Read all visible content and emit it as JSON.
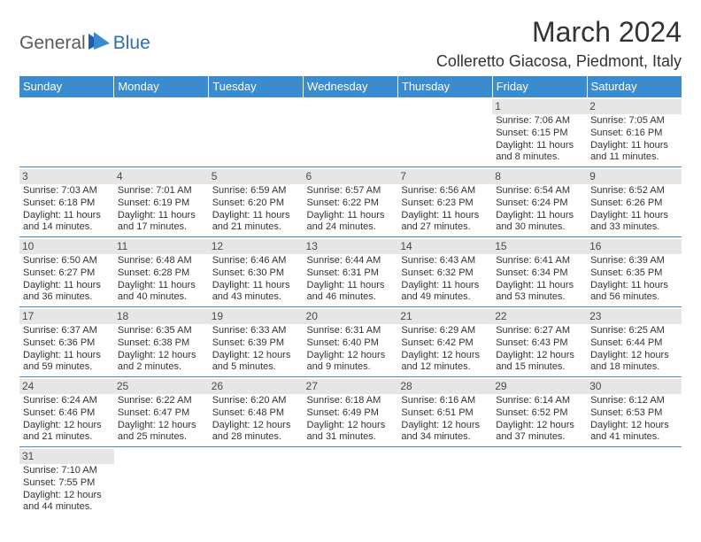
{
  "logo": {
    "text1": "General",
    "text2": "Blue"
  },
  "title": "March 2024",
  "location": "Colleretto Giacosa, Piedmont, Italy",
  "dayHeaders": [
    "Sunday",
    "Monday",
    "Tuesday",
    "Wednesday",
    "Thursday",
    "Friday",
    "Saturday"
  ],
  "colors": {
    "headerBg": "#3b8cce",
    "headerText": "#ffffff",
    "dayNumBg": "#e6e6e6",
    "dayNumText": "#4a4a4a",
    "bodyText": "#333333",
    "cellBorder": "#3b8cce",
    "logoGray": "#5a5a5a",
    "logoBlue": "#2a6ebd"
  },
  "weeks": [
    [
      null,
      null,
      null,
      null,
      null,
      {
        "n": "1",
        "sr": "Sunrise: 7:06 AM",
        "ss": "Sunset: 6:15 PM",
        "d1": "Daylight: 11 hours",
        "d2": "and 8 minutes."
      },
      {
        "n": "2",
        "sr": "Sunrise: 7:05 AM",
        "ss": "Sunset: 6:16 PM",
        "d1": "Daylight: 11 hours",
        "d2": "and 11 minutes."
      }
    ],
    [
      {
        "n": "3",
        "sr": "Sunrise: 7:03 AM",
        "ss": "Sunset: 6:18 PM",
        "d1": "Daylight: 11 hours",
        "d2": "and 14 minutes."
      },
      {
        "n": "4",
        "sr": "Sunrise: 7:01 AM",
        "ss": "Sunset: 6:19 PM",
        "d1": "Daylight: 11 hours",
        "d2": "and 17 minutes."
      },
      {
        "n": "5",
        "sr": "Sunrise: 6:59 AM",
        "ss": "Sunset: 6:20 PM",
        "d1": "Daylight: 11 hours",
        "d2": "and 21 minutes."
      },
      {
        "n": "6",
        "sr": "Sunrise: 6:57 AM",
        "ss": "Sunset: 6:22 PM",
        "d1": "Daylight: 11 hours",
        "d2": "and 24 minutes."
      },
      {
        "n": "7",
        "sr": "Sunrise: 6:56 AM",
        "ss": "Sunset: 6:23 PM",
        "d1": "Daylight: 11 hours",
        "d2": "and 27 minutes."
      },
      {
        "n": "8",
        "sr": "Sunrise: 6:54 AM",
        "ss": "Sunset: 6:24 PM",
        "d1": "Daylight: 11 hours",
        "d2": "and 30 minutes."
      },
      {
        "n": "9",
        "sr": "Sunrise: 6:52 AM",
        "ss": "Sunset: 6:26 PM",
        "d1": "Daylight: 11 hours",
        "d2": "and 33 minutes."
      }
    ],
    [
      {
        "n": "10",
        "sr": "Sunrise: 6:50 AM",
        "ss": "Sunset: 6:27 PM",
        "d1": "Daylight: 11 hours",
        "d2": "and 36 minutes."
      },
      {
        "n": "11",
        "sr": "Sunrise: 6:48 AM",
        "ss": "Sunset: 6:28 PM",
        "d1": "Daylight: 11 hours",
        "d2": "and 40 minutes."
      },
      {
        "n": "12",
        "sr": "Sunrise: 6:46 AM",
        "ss": "Sunset: 6:30 PM",
        "d1": "Daylight: 11 hours",
        "d2": "and 43 minutes."
      },
      {
        "n": "13",
        "sr": "Sunrise: 6:44 AM",
        "ss": "Sunset: 6:31 PM",
        "d1": "Daylight: 11 hours",
        "d2": "and 46 minutes."
      },
      {
        "n": "14",
        "sr": "Sunrise: 6:43 AM",
        "ss": "Sunset: 6:32 PM",
        "d1": "Daylight: 11 hours",
        "d2": "and 49 minutes."
      },
      {
        "n": "15",
        "sr": "Sunrise: 6:41 AM",
        "ss": "Sunset: 6:34 PM",
        "d1": "Daylight: 11 hours",
        "d2": "and 53 minutes."
      },
      {
        "n": "16",
        "sr": "Sunrise: 6:39 AM",
        "ss": "Sunset: 6:35 PM",
        "d1": "Daylight: 11 hours",
        "d2": "and 56 minutes."
      }
    ],
    [
      {
        "n": "17",
        "sr": "Sunrise: 6:37 AM",
        "ss": "Sunset: 6:36 PM",
        "d1": "Daylight: 11 hours",
        "d2": "and 59 minutes."
      },
      {
        "n": "18",
        "sr": "Sunrise: 6:35 AM",
        "ss": "Sunset: 6:38 PM",
        "d1": "Daylight: 12 hours",
        "d2": "and 2 minutes."
      },
      {
        "n": "19",
        "sr": "Sunrise: 6:33 AM",
        "ss": "Sunset: 6:39 PM",
        "d1": "Daylight: 12 hours",
        "d2": "and 5 minutes."
      },
      {
        "n": "20",
        "sr": "Sunrise: 6:31 AM",
        "ss": "Sunset: 6:40 PM",
        "d1": "Daylight: 12 hours",
        "d2": "and 9 minutes."
      },
      {
        "n": "21",
        "sr": "Sunrise: 6:29 AM",
        "ss": "Sunset: 6:42 PM",
        "d1": "Daylight: 12 hours",
        "d2": "and 12 minutes."
      },
      {
        "n": "22",
        "sr": "Sunrise: 6:27 AM",
        "ss": "Sunset: 6:43 PM",
        "d1": "Daylight: 12 hours",
        "d2": "and 15 minutes."
      },
      {
        "n": "23",
        "sr": "Sunrise: 6:25 AM",
        "ss": "Sunset: 6:44 PM",
        "d1": "Daylight: 12 hours",
        "d2": "and 18 minutes."
      }
    ],
    [
      {
        "n": "24",
        "sr": "Sunrise: 6:24 AM",
        "ss": "Sunset: 6:46 PM",
        "d1": "Daylight: 12 hours",
        "d2": "and 21 minutes."
      },
      {
        "n": "25",
        "sr": "Sunrise: 6:22 AM",
        "ss": "Sunset: 6:47 PM",
        "d1": "Daylight: 12 hours",
        "d2": "and 25 minutes."
      },
      {
        "n": "26",
        "sr": "Sunrise: 6:20 AM",
        "ss": "Sunset: 6:48 PM",
        "d1": "Daylight: 12 hours",
        "d2": "and 28 minutes."
      },
      {
        "n": "27",
        "sr": "Sunrise: 6:18 AM",
        "ss": "Sunset: 6:49 PM",
        "d1": "Daylight: 12 hours",
        "d2": "and 31 minutes."
      },
      {
        "n": "28",
        "sr": "Sunrise: 6:16 AM",
        "ss": "Sunset: 6:51 PM",
        "d1": "Daylight: 12 hours",
        "d2": "and 34 minutes."
      },
      {
        "n": "29",
        "sr": "Sunrise: 6:14 AM",
        "ss": "Sunset: 6:52 PM",
        "d1": "Daylight: 12 hours",
        "d2": "and 37 minutes."
      },
      {
        "n": "30",
        "sr": "Sunrise: 6:12 AM",
        "ss": "Sunset: 6:53 PM",
        "d1": "Daylight: 12 hours",
        "d2": "and 41 minutes."
      }
    ],
    [
      {
        "n": "31",
        "sr": "Sunrise: 7:10 AM",
        "ss": "Sunset: 7:55 PM",
        "d1": "Daylight: 12 hours",
        "d2": "and 44 minutes."
      },
      null,
      null,
      null,
      null,
      null,
      null
    ]
  ]
}
